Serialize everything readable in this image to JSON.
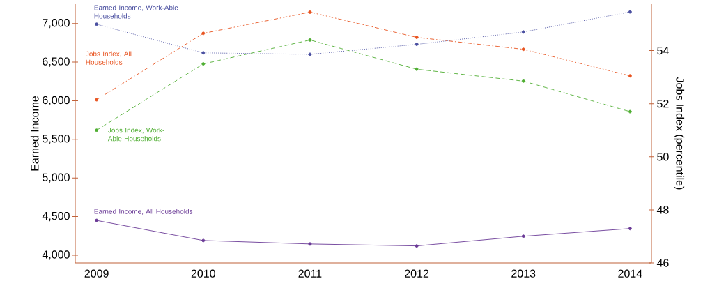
{
  "chart_data": {
    "type": "line",
    "ylabel": "Earned Income",
    "y2label": "Jobs Index (percentile)",
    "categories": [
      "2009",
      "2010",
      "2011",
      "2012",
      "2013",
      "2014"
    ],
    "series": [
      {
        "name": "Earned Income, Work-Able Households",
        "color": "#4a4fa0",
        "line_style": "dotted",
        "values": [
          6990,
          6620,
          6600,
          6730,
          6890,
          7150
        ]
      },
      {
        "name": "Earned Income, All Households",
        "color": "#6a3a96",
        "line_style": "solid",
        "values": [
          4450,
          4190,
          4145,
          4120,
          4245,
          4345
        ]
      },
      {
        "name": "Jobs Index, All Households",
        "color": "#e8531f",
        "line_style": "dashdot",
        "axis": "y2",
        "values": [
          52.15,
          54.65,
          55.45,
          54.5,
          54.05,
          53.05
        ]
      },
      {
        "name": "Jobs Index, Work-Able Households",
        "color": "#4fae32",
        "line_style": "dashed",
        "axis": "y2",
        "values": [
          51.0,
          53.5,
          54.4,
          53.3,
          52.85,
          51.7
        ]
      }
    ],
    "ylim": [
      3900,
      7250
    ],
    "yticks": [
      {
        "value": 4000,
        "label": "4,000"
      },
      {
        "value": 4500,
        "label": "4,500"
      },
      {
        "value": 5000,
        "label": "5,000"
      },
      {
        "value": 5500,
        "label": "5,500"
      },
      {
        "value": 6000,
        "label": "6,000"
      },
      {
        "value": 6500,
        "label": "6,500"
      },
      {
        "value": 7000,
        "label": "7,000"
      }
    ],
    "y2lim": [
      46,
      55.75
    ],
    "y2ticks": [
      46,
      48,
      50,
      52,
      54
    ],
    "marker": "circle",
    "grid": false,
    "legend": false
  }
}
